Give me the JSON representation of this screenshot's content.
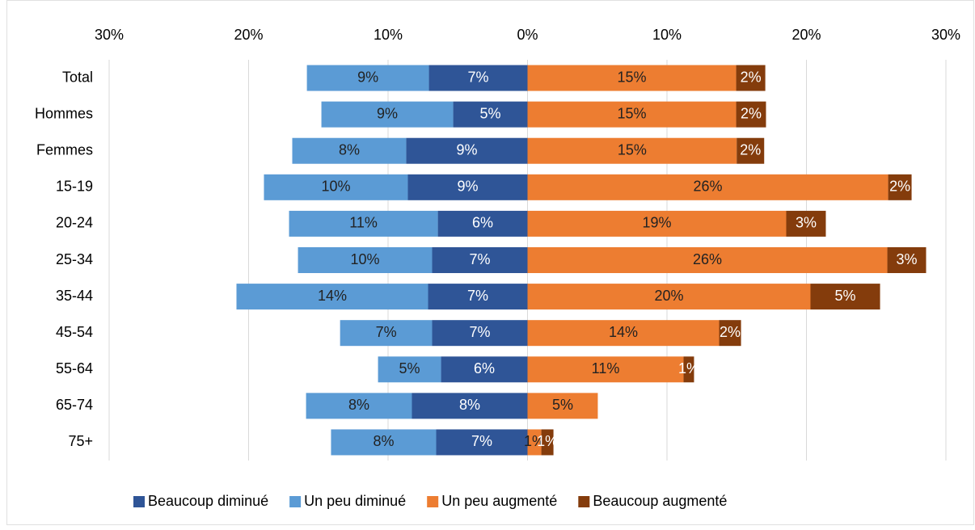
{
  "chart_data": {
    "type": "bar",
    "orientation": "horizontal",
    "stacked": "diverging",
    "categories": [
      "Total",
      "Hommes",
      "Femmes",
      "15-19",
      "20-24",
      "25-34",
      "35-44",
      "45-54",
      "55-64",
      "65-74",
      "75+"
    ],
    "xlim": [
      -30,
      30
    ],
    "xticks": [
      {
        "value": -30,
        "label": "30%"
      },
      {
        "value": -20,
        "label": "20%"
      },
      {
        "value": -10,
        "label": "10%"
      },
      {
        "value": 0,
        "label": "0%"
      },
      {
        "value": 10,
        "label": "10%"
      },
      {
        "value": 20,
        "label": "20%"
      },
      {
        "value": 30,
        "label": "30%"
      }
    ],
    "grid": true,
    "legend": "bottom",
    "series": [
      {
        "name": "Beaucoup diminué",
        "color": "#2f5597",
        "label_color": "#ffffff",
        "values": [
          -7.07,
          -5.33,
          -8.7,
          -8.58,
          -6.43,
          -6.84,
          -7.13,
          -6.84,
          -6.2,
          -8.29,
          -6.55
        ],
        "value_labels": [
          "7%",
          "5%",
          "9%",
          "9%",
          "6%",
          "7%",
          "7%",
          "7%",
          "6%",
          "8%",
          "7%"
        ]
      },
      {
        "name": "Un peu diminué",
        "color": "#5b9bd5",
        "label_color": "#222222",
        "values": [
          -8.75,
          -9.45,
          -8.17,
          -10.32,
          -10.67,
          -9.62,
          -13.74,
          -6.6,
          -4.52,
          -7.59,
          -7.54
        ],
        "value_labels": [
          "9%",
          "9%",
          "8%",
          "10%",
          "11%",
          "10%",
          "14%",
          "7%",
          "5%",
          "8%",
          "8%"
        ]
      },
      {
        "name": "Un peu augmenté",
        "color": "#ed7d31",
        "label_color": "#222222",
        "values": [
          14.96,
          14.96,
          15.0,
          25.86,
          18.55,
          25.8,
          20.29,
          13.74,
          11.19,
          5.04,
          0.99
        ],
        "value_labels": [
          "15%",
          "15%",
          "15%",
          "26%",
          "19%",
          "26%",
          "20%",
          "14%",
          "11%",
          "5%",
          "1%"
        ]
      },
      {
        "name": "Beaucoup augmenté",
        "color": "#843c0c",
        "label_color": "#ffffff",
        "values": [
          2.09,
          2.14,
          1.97,
          1.68,
          2.84,
          2.78,
          4.99,
          1.57,
          0.75,
          null,
          0.87
        ],
        "value_labels": [
          "2%",
          "2%",
          "2%",
          "2%",
          "3%",
          "3%",
          "5%",
          "2%",
          "1%",
          null,
          "1%"
        ]
      }
    ]
  }
}
